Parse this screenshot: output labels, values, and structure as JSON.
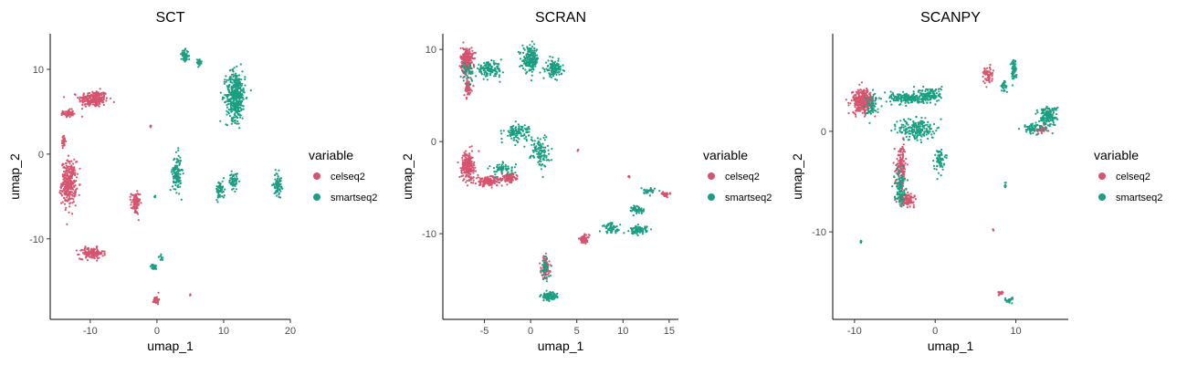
{
  "chart_data": [
    {
      "type": "scatter",
      "title": "SCT",
      "xlabel": "umap_1",
      "ylabel": "umap_2",
      "xlim": [
        -16,
        20
      ],
      "ylim": [
        -19.5,
        14.2
      ],
      "xticks": [
        -10,
        0,
        10,
        20
      ],
      "yticks": [
        -10,
        0,
        10
      ],
      "legend": {
        "title": "variable",
        "position": "right",
        "entries": [
          "celseq2",
          "smartseq2"
        ]
      },
      "series": [
        {
          "name": "celseq2",
          "color": "#D6546E",
          "clusters": [
            {
              "cx": -9.5,
              "cy": 6.5,
              "sx": 2.0,
              "sy": 0.9,
              "n": 230
            },
            {
              "cx": -13.3,
              "cy": 4.8,
              "sx": 0.7,
              "sy": 0.4,
              "n": 60
            },
            {
              "cx": -14.0,
              "cy": 1.5,
              "sx": 0.3,
              "sy": 0.6,
              "n": 30
            },
            {
              "cx": -13.2,
              "cy": -3.4,
              "sx": 1.0,
              "sy": 2.3,
              "n": 320
            },
            {
              "cx": -3.2,
              "cy": -5.8,
              "sx": 0.6,
              "sy": 1.2,
              "n": 90
            },
            {
              "cx": -9.8,
              "cy": -11.7,
              "sx": 1.6,
              "sy": 0.6,
              "n": 140
            },
            {
              "cx": -0.1,
              "cy": -17.2,
              "sx": 0.35,
              "sy": 0.45,
              "n": 40
            },
            {
              "cx": -0.9,
              "cy": 3.3,
              "sx": 0.1,
              "sy": 0.1,
              "n": 5
            },
            {
              "cx": 5.0,
              "cy": -16.6,
              "sx": 0.1,
              "sy": 0.1,
              "n": 3
            }
          ]
        },
        {
          "name": "smartseq2",
          "color": "#1B9E82",
          "clusters": [
            {
              "cx": 11.8,
              "cy": 6.9,
              "sx": 1.3,
              "sy": 2.6,
              "n": 420
            },
            {
              "cx": 4.2,
              "cy": 11.6,
              "sx": 0.5,
              "sy": 0.6,
              "n": 60
            },
            {
              "cx": 6.3,
              "cy": 10.8,
              "sx": 0.4,
              "sy": 0.4,
              "n": 25
            },
            {
              "cx": 3.0,
              "cy": -2.2,
              "sx": 0.6,
              "sy": 2.0,
              "n": 130
            },
            {
              "cx": 9.5,
              "cy": -4.2,
              "sx": 0.6,
              "sy": 1.0,
              "n": 60
            },
            {
              "cx": 11.5,
              "cy": -3.2,
              "sx": 0.6,
              "sy": 0.9,
              "n": 60
            },
            {
              "cx": 18.1,
              "cy": -3.5,
              "sx": 0.5,
              "sy": 1.2,
              "n": 80
            },
            {
              "cx": -0.5,
              "cy": -13.3,
              "sx": 0.4,
              "sy": 0.3,
              "n": 25
            },
            {
              "cx": 0.6,
              "cy": -12.3,
              "sx": 0.3,
              "sy": 0.3,
              "n": 12
            },
            {
              "cx": -0.3,
              "cy": -5.0,
              "sx": 0.1,
              "sy": 0.1,
              "n": 4
            }
          ]
        }
      ]
    },
    {
      "type": "scatter",
      "title": "SCRAN",
      "xlabel": "umap_1",
      "ylabel": "umap_2",
      "xlim": [
        -9.5,
        16
      ],
      "ylim": [
        -19.3,
        11.7
      ],
      "xticks": [
        -5,
        0,
        5,
        10,
        15
      ],
      "yticks": [
        -10,
        0,
        10
      ],
      "legend": {
        "title": "variable",
        "position": "right",
        "entries": [
          "celseq2",
          "smartseq2"
        ]
      },
      "series": [
        {
          "name": "celseq2",
          "color": "#D6546E",
          "clusters": [
            {
              "cx": -6.9,
              "cy": 8.8,
              "sx": 0.6,
              "sy": 1.3,
              "n": 260
            },
            {
              "cx": -6.8,
              "cy": 5.8,
              "sx": 0.4,
              "sy": 0.8,
              "n": 70
            },
            {
              "cx": -6.8,
              "cy": -2.6,
              "sx": 0.6,
              "sy": 1.3,
              "n": 220
            },
            {
              "cx": -4.5,
              "cy": -4.3,
              "sx": 1.4,
              "sy": 0.5,
              "n": 160
            },
            {
              "cx": -2.3,
              "cy": -3.9,
              "sx": 0.7,
              "sy": 0.4,
              "n": 90
            },
            {
              "cx": 1.6,
              "cy": -13.7,
              "sx": 0.4,
              "sy": 1.1,
              "n": 120
            },
            {
              "cx": 5.8,
              "cy": -10.6,
              "sx": 0.5,
              "sy": 0.4,
              "n": 70
            },
            {
              "cx": 14.6,
              "cy": -5.7,
              "sx": 0.4,
              "sy": 0.2,
              "n": 30
            },
            {
              "cx": 10.7,
              "cy": -3.8,
              "sx": 0.1,
              "sy": 0.1,
              "n": 6
            },
            {
              "cx": 5.1,
              "cy": -1.0,
              "sx": 0.1,
              "sy": 0.1,
              "n": 4
            }
          ]
        },
        {
          "name": "smartseq2",
          "color": "#1B9E82",
          "clusters": [
            {
              "cx": -4.5,
              "cy": 7.8,
              "sx": 1.3,
              "sy": 0.7,
              "n": 140
            },
            {
              "cx": 0.0,
              "cy": 8.9,
              "sx": 0.8,
              "sy": 1.2,
              "n": 180
            },
            {
              "cx": 2.5,
              "cy": 7.9,
              "sx": 0.8,
              "sy": 0.8,
              "n": 120
            },
            {
              "cx": -6.8,
              "cy": 7.5,
              "sx": 0.5,
              "sy": 1.0,
              "n": 40
            },
            {
              "cx": -1.4,
              "cy": 1.0,
              "sx": 1.3,
              "sy": 0.8,
              "n": 110
            },
            {
              "cx": 1.0,
              "cy": -1.0,
              "sx": 0.9,
              "sy": 1.6,
              "n": 110
            },
            {
              "cx": -3.0,
              "cy": -3.0,
              "sx": 1.2,
              "sy": 0.6,
              "n": 60
            },
            {
              "cx": 11.6,
              "cy": -7.4,
              "sx": 0.6,
              "sy": 0.4,
              "n": 60
            },
            {
              "cx": 11.7,
              "cy": -9.6,
              "sx": 0.8,
              "sy": 0.4,
              "n": 90
            },
            {
              "cx": 8.8,
              "cy": -9.4,
              "sx": 0.9,
              "sy": 0.5,
              "n": 60
            },
            {
              "cx": 2.0,
              "cy": -16.8,
              "sx": 0.8,
              "sy": 0.4,
              "n": 90
            },
            {
              "cx": 1.6,
              "cy": -13.8,
              "sx": 0.4,
              "sy": 1.0,
              "n": 40
            },
            {
              "cx": 12.7,
              "cy": -5.4,
              "sx": 0.7,
              "sy": 0.3,
              "n": 30
            }
          ]
        }
      ]
    },
    {
      "type": "scatter",
      "title": "SCANPY",
      "xlabel": "umap_1",
      "ylabel": "umap_2",
      "xlim": [
        -12.7,
        16.5
      ],
      "ylim": [
        -18.7,
        9.7
      ],
      "xticks": [
        -10,
        0,
        10
      ],
      "yticks": [
        -10,
        0
      ],
      "legend": {
        "title": "variable",
        "position": "right",
        "entries": [
          "celseq2",
          "smartseq2"
        ]
      },
      "series": [
        {
          "name": "celseq2",
          "color": "#D6546E",
          "clusters": [
            {
              "cx": -9.0,
              "cy": 3.0,
              "sx": 1.2,
              "sy": 1.1,
              "n": 300
            },
            {
              "cx": -4.2,
              "cy": -3.5,
              "sx": 0.6,
              "sy": 2.0,
              "n": 150
            },
            {
              "cx": -3.5,
              "cy": -6.8,
              "sx": 0.8,
              "sy": 0.5,
              "n": 110
            },
            {
              "cx": 6.5,
              "cy": 5.6,
              "sx": 0.6,
              "sy": 0.8,
              "n": 60
            },
            {
              "cx": 13.2,
              "cy": 0.2,
              "sx": 0.7,
              "sy": 0.4,
              "n": 40
            },
            {
              "cx": 8.2,
              "cy": -16.1,
              "sx": 0.3,
              "sy": 0.2,
              "n": 20
            },
            {
              "cx": 7.2,
              "cy": -9.7,
              "sx": 0.1,
              "sy": 0.2,
              "n": 5
            }
          ]
        },
        {
          "name": "smartseq2",
          "color": "#1B9E82",
          "clusters": [
            {
              "cx": -3.5,
              "cy": 3.3,
              "sx": 2.0,
              "sy": 0.5,
              "n": 180
            },
            {
              "cx": -0.5,
              "cy": 3.6,
              "sx": 1.2,
              "sy": 0.7,
              "n": 130
            },
            {
              "cx": -2.3,
              "cy": 0.2,
              "sx": 2.0,
              "sy": 1.0,
              "n": 200
            },
            {
              "cx": 0.5,
              "cy": -2.8,
              "sx": 0.6,
              "sy": 1.0,
              "n": 60
            },
            {
              "cx": -4.4,
              "cy": -5.5,
              "sx": 0.6,
              "sy": 1.6,
              "n": 110
            },
            {
              "cx": -7.8,
              "cy": 2.5,
              "sx": 0.8,
              "sy": 1.0,
              "n": 60
            },
            {
              "cx": 9.7,
              "cy": 6.3,
              "sx": 0.3,
              "sy": 1.0,
              "n": 60
            },
            {
              "cx": 8.5,
              "cy": 4.5,
              "sx": 0.4,
              "sy": 0.6,
              "n": 30
            },
            {
              "cx": 14.0,
              "cy": 1.5,
              "sx": 1.0,
              "sy": 0.9,
              "n": 160
            },
            {
              "cx": 12.0,
              "cy": 0.3,
              "sx": 1.0,
              "sy": 0.5,
              "n": 60
            },
            {
              "cx": 9.2,
              "cy": -16.8,
              "sx": 0.5,
              "sy": 0.3,
              "n": 25
            },
            {
              "cx": 8.7,
              "cy": -5.4,
              "sx": 0.15,
              "sy": 0.3,
              "n": 8
            },
            {
              "cx": -9.2,
              "cy": -11.0,
              "sx": 0.1,
              "sy": 0.1,
              "n": 4
            }
          ]
        }
      ]
    }
  ]
}
